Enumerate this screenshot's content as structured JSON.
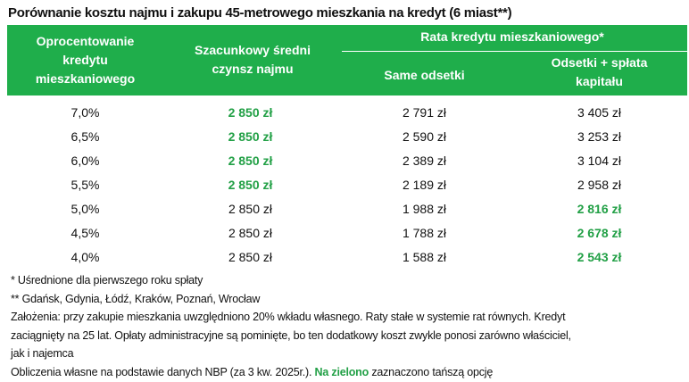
{
  "title": "Porównanie kosztu najmu i zakupu 45-metrowego mieszkania na kredyt (6 miast**)",
  "header": {
    "col1": [
      "Oprocentowanie",
      "kredytu",
      "mieszkaniowego"
    ],
    "col2": [
      "Szacunkowy średni",
      "czynsz najmu"
    ],
    "group": "Rata kredytu mieszkaniowego*",
    "col3": "Same odsetki",
    "col4": [
      "Odsetki + spłata",
      "kapitału"
    ]
  },
  "accent_color": "#1fae4b",
  "rows": [
    {
      "rate": "7,0%",
      "rent": "2 850 zł",
      "interest": "2 791 zł",
      "full": "3 405 zł",
      "cheaper": "rent"
    },
    {
      "rate": "6,5%",
      "rent": "2 850 zł",
      "interest": "2 590 zł",
      "full": "3 253 zł",
      "cheaper": "rent"
    },
    {
      "rate": "6,0%",
      "rent": "2 850 zł",
      "interest": "2 389 zł",
      "full": "3 104 zł",
      "cheaper": "rent"
    },
    {
      "rate": "5,5%",
      "rent": "2 850 zł",
      "interest": "2 189 zł",
      "full": "2 958 zł",
      "cheaper": "rent"
    },
    {
      "rate": "5,0%",
      "rent": "2 850 zł",
      "interest": "1 988 zł",
      "full": "2 816 zł",
      "cheaper": "full"
    },
    {
      "rate": "4,5%",
      "rent": "2 850 zł",
      "interest": "1 788 zł",
      "full": "2 678 zł",
      "cheaper": "full"
    },
    {
      "rate": "4,0%",
      "rent": "2 850 zł",
      "interest": "1 588 zł",
      "full": "2 543 zł",
      "cheaper": "full"
    }
  ],
  "notes": {
    "n1": "* Uśrednione dla pierwszego roku spłaty",
    "n2": "** Gdańsk, Gdynia, Łódź, Kraków, Poznań, Wrocław",
    "n3a": "Założenia: przy zakupie mieszkania uwzględniono 20% wkładu własnego. Raty stałe w systemie rat równych. Kredyt",
    "n3b": "zaciągnięty na 25 lat. Opłaty administracyjne są pominięte, bo ten dodatkowy koszt zwykle ponosi zarówno właściciel,",
    "n3c": "jak i najemca",
    "n4": "Obliczenia własne na podstawie danych NBP (za 3 kw. 2025r.). ",
    "n4_green": "Na zielono",
    "n4_end": " zaznaczono tańszą opcję"
  }
}
